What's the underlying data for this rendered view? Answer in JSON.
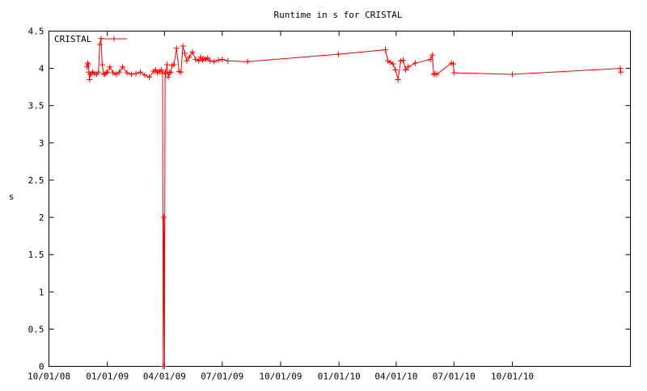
{
  "chart_data": {
    "type": "line",
    "title": "Runtime in s for CRISTAL",
    "ylabel": "s",
    "xlabel": "",
    "ylim": [
      0,
      4.5
    ],
    "yticks": [
      "0",
      "0.5",
      "1",
      "1.5",
      "2",
      "2.5",
      "3",
      "3.5",
      "4",
      "4.5"
    ],
    "xticks": [
      "10/01/08",
      "01/01/09",
      "04/01/09",
      "07/01/09",
      "10/01/09",
      "01/01/10",
      "04/01/10",
      "07/01/10",
      "10/01/10"
    ],
    "xlim": [
      "2008-10-01",
      "2011-04-05"
    ],
    "grid": false,
    "legend_position": "top-left",
    "series": [
      {
        "name": "CRISTAL",
        "color": "#ff0000",
        "x": [
          "2008-11-30",
          "2008-12-01",
          "2008-12-02",
          "2008-12-03",
          "2008-12-04",
          "2008-12-05",
          "2008-12-07",
          "2008-12-09",
          "2008-12-12",
          "2008-12-15",
          "2008-12-18",
          "2008-12-20",
          "2008-12-22",
          "2008-12-24",
          "2008-12-26",
          "2008-12-28",
          "2008-12-30",
          "2009-01-01",
          "2009-01-05",
          "2009-01-10",
          "2009-01-15",
          "2009-01-20",
          "2009-01-25",
          "2009-02-01",
          "2009-02-08",
          "2009-02-15",
          "2009-02-22",
          "2009-03-01",
          "2009-03-08",
          "2009-03-15",
          "2009-03-18",
          "2009-03-21",
          "2009-03-24",
          "2009-03-27",
          "2009-03-29",
          "2009-03-30",
          "2009-03-31",
          "2009-04-01",
          "2009-04-02",
          "2009-04-03",
          "2009-04-05",
          "2009-04-07",
          "2009-04-09",
          "2009-04-11",
          "2009-04-13",
          "2009-04-16",
          "2009-04-20",
          "2009-04-24",
          "2009-04-27",
          "2009-04-30",
          "2009-05-03",
          "2009-05-06",
          "2009-05-10",
          "2009-05-15",
          "2009-05-20",
          "2009-05-25",
          "2009-05-28",
          "2009-05-31",
          "2009-06-02",
          "2009-06-05",
          "2009-06-08",
          "2009-06-12",
          "2009-06-18",
          "2009-06-25",
          "2009-07-01",
          "2009-07-10",
          "2009-08-10",
          "2009-12-31",
          "2010-03-15",
          "2010-03-19",
          "2010-03-23",
          "2010-03-27",
          "2010-03-31",
          "2010-04-04",
          "2010-04-08",
          "2010-04-12",
          "2010-04-16",
          "2010-04-20",
          "2010-05-01",
          "2010-05-25",
          "2010-05-28",
          "2010-05-30",
          "2010-06-01",
          "2010-06-04",
          "2010-06-27",
          "2010-06-30",
          "2010-07-01",
          "2010-10-01",
          "2011-03-20",
          "2011-03-21"
        ],
        "y": [
          4.02,
          4.07,
          4.05,
          3.95,
          3.85,
          3.92,
          3.93,
          3.95,
          3.93,
          3.92,
          3.95,
          4.32,
          4.4,
          4.05,
          3.93,
          3.92,
          3.94,
          3.95,
          4.02,
          3.94,
          3.92,
          3.95,
          4.02,
          3.94,
          3.92,
          3.93,
          3.95,
          3.91,
          3.88,
          3.96,
          3.98,
          3.94,
          3.96,
          3.98,
          3.93,
          0.0,
          2.0,
          0.0,
          3.95,
          3.93,
          4.05,
          3.88,
          3.94,
          3.95,
          4.04,
          4.05,
          4.27,
          3.96,
          3.95,
          4.3,
          4.2,
          4.1,
          4.15,
          4.22,
          4.12,
          4.1,
          4.15,
          4.11,
          4.13,
          4.12,
          4.14,
          4.1,
          4.09,
          4.11,
          4.12,
          4.1,
          4.09,
          4.19,
          4.25,
          4.1,
          4.08,
          4.06,
          3.98,
          3.85,
          4.1,
          4.11,
          3.98,
          4.02,
          4.07,
          4.12,
          4.18,
          3.92,
          3.93,
          3.92,
          4.07,
          4.06,
          3.94,
          3.92,
          4.0,
          3.95
        ]
      }
    ]
  }
}
